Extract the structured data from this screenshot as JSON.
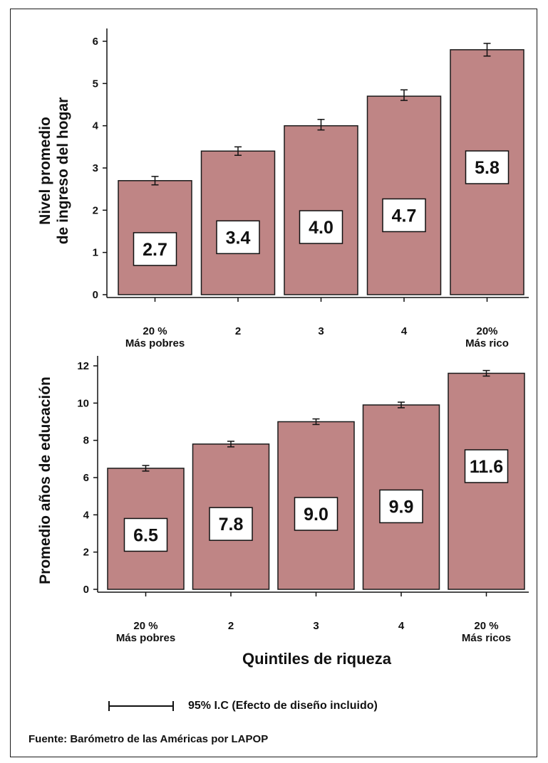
{
  "colors": {
    "bar_fill": "#BF8585",
    "bar_stroke": "#1a1a1a",
    "text": "#111111"
  },
  "chart_data": [
    {
      "type": "bar",
      "ylabel_lines": [
        "Nivel promedio",
        "de ingreso del hogar"
      ],
      "xlabel": "",
      "categories": [
        [
          "20 %",
          "Más pobres"
        ],
        [
          "2"
        ],
        [
          "3"
        ],
        [
          "4"
        ],
        [
          "20%",
          "Más rico"
        ]
      ],
      "values": [
        2.7,
        3.4,
        4.0,
        4.7,
        5.8
      ],
      "error_low": [
        2.6,
        3.3,
        3.9,
        4.6,
        5.65
      ],
      "error_high": [
        2.8,
        3.5,
        4.15,
        4.85,
        5.95
      ],
      "value_labels": [
        "2.7",
        "3.4",
        "4.0",
        "4.7",
        "5.8"
      ],
      "ylim": [
        0,
        6
      ],
      "yticks": [
        0,
        1,
        2,
        3,
        4,
        5,
        6
      ],
      "grid": false
    },
    {
      "type": "bar",
      "ylabel_lines": [
        "Promedio años de educación"
      ],
      "xlabel": "Quintiles de riqueza",
      "categories": [
        [
          "20 %",
          "Más pobres"
        ],
        [
          "2"
        ],
        [
          "3"
        ],
        [
          "4"
        ],
        [
          "20 %",
          "Más ricos"
        ]
      ],
      "values": [
        6.5,
        7.8,
        9.0,
        9.9,
        11.6
      ],
      "error_low": [
        6.35,
        7.65,
        8.85,
        9.75,
        11.45
      ],
      "error_high": [
        6.65,
        7.95,
        9.15,
        10.05,
        11.75
      ],
      "value_labels": [
        "6.5",
        "7.8",
        "9.0",
        "9.9",
        "11.6"
      ],
      "ylim": [
        0,
        12
      ],
      "yticks": [
        0,
        2,
        4,
        6,
        8,
        10,
        12
      ],
      "grid": false
    }
  ],
  "legend": {
    "ci_label": "95% I.C (Efecto de diseño incluido)"
  },
  "source": "Fuente: Barómetro de las Américas por LAPOP"
}
